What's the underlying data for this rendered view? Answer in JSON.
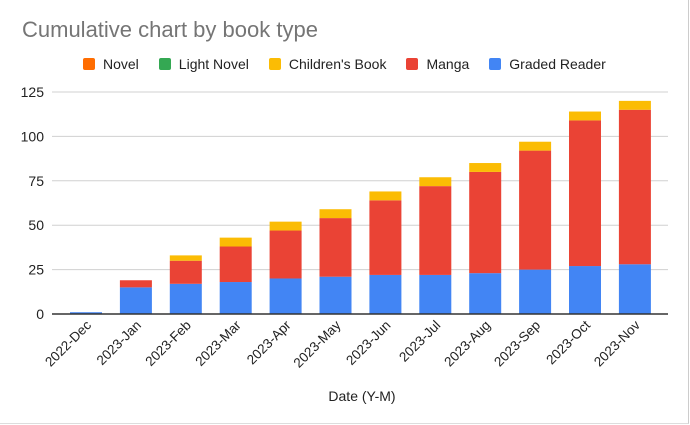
{
  "chart_data": {
    "type": "bar",
    "stacked": true,
    "title": "Cumulative chart by book type",
    "xlabel": "Date (Y-M)",
    "ylabel": "",
    "ylim": [
      0,
      125
    ],
    "yticks": [
      0,
      25,
      50,
      75,
      100,
      125
    ],
    "grid": true,
    "legend_position": "top",
    "categories": [
      "2022-Dec",
      "2023-Jan",
      "2023-Feb",
      "2023-Mar",
      "2023-Apr",
      "2023-May",
      "2023-Jun",
      "2023-Jul",
      "2023-Aug",
      "2023-Sep",
      "2023-Oct",
      "2023-Nov"
    ],
    "series": [
      {
        "name": "Graded Reader",
        "color": "#4285f4",
        "values": [
          1,
          15,
          17,
          18,
          20,
          21,
          22,
          22,
          23,
          25,
          27,
          28
        ]
      },
      {
        "name": "Manga",
        "color": "#ea4335",
        "values": [
          0,
          4,
          13,
          20,
          27,
          33,
          42,
          50,
          57,
          67,
          82,
          87
        ]
      },
      {
        "name": "Children's Book",
        "color": "#fbbc04",
        "values": [
          0,
          0,
          3,
          5,
          5,
          5,
          5,
          5,
          5,
          5,
          5,
          5
        ]
      },
      {
        "name": "Light Novel",
        "color": "#34a853",
        "values": [
          0,
          0,
          0,
          0,
          0,
          0,
          0,
          0,
          0,
          0,
          0,
          0
        ]
      },
      {
        "name": "Novel",
        "color": "#ff6d01",
        "values": [
          0,
          0,
          0,
          0,
          0,
          0,
          0,
          0,
          0,
          0,
          0,
          0
        ]
      }
    ],
    "legend_order": [
      "Novel",
      "Light Novel",
      "Children's Book",
      "Manga",
      "Graded Reader"
    ]
  }
}
